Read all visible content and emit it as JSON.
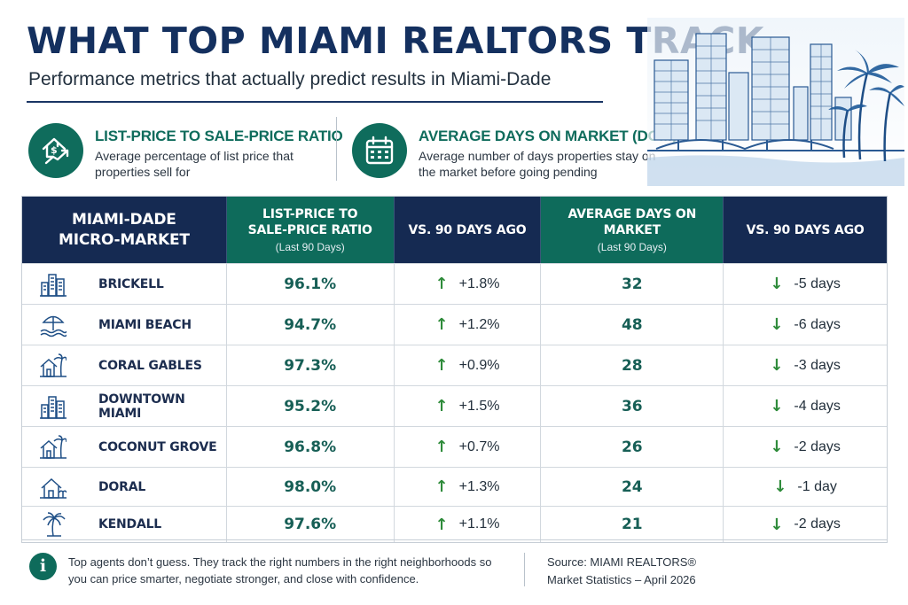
{
  "header": {
    "title": "WHAT TOP MIAMI REALTORS TRACK",
    "subtitle": "Performance metrics that actually predict results in Miami-Dade"
  },
  "metrics": [
    {
      "title": "LIST-PRICE TO SALE-PRICE RATIO",
      "description": "Average percentage of list price that properties sell for",
      "icon": "house-dollar-trend-icon"
    },
    {
      "title": "AVERAGE DAYS ON MARKET (DOM)",
      "description": "Average number of days properties stay on the market before going pending",
      "icon": "calendar-icon"
    }
  ],
  "table": {
    "headers": [
      {
        "title": "MIAMI-DADE MICRO-MARKET",
        "sub": ""
      },
      {
        "title": "LIST-PRICE TO SALE-PRICE RATIO",
        "sub": "(Last 90 Days)"
      },
      {
        "title": "VS. 90 DAYS AGO",
        "sub": ""
      },
      {
        "title": "AVERAGE DAYS ON MARKET",
        "sub": "(Last 90 Days)"
      },
      {
        "title": "VS. 90 DAYS AGO",
        "sub": ""
      }
    ],
    "rows": [
      {
        "name": "BRICKELL",
        "icon": "buildings-icon",
        "ratio": "96.1%",
        "ratio_change": "+1.8%",
        "dom": "32",
        "dom_change": "-5 days"
      },
      {
        "name": "MIAMI BEACH",
        "icon": "beach-umbrella-icon",
        "ratio": "94.7%",
        "ratio_change": "+1.2%",
        "dom": "48",
        "dom_change": "-6 days"
      },
      {
        "name": "CORAL GABLES",
        "icon": "house-palm-icon",
        "ratio": "97.3%",
        "ratio_change": "+0.9%",
        "dom": "28",
        "dom_change": "-3 days"
      },
      {
        "name": "DOWNTOWN MIAMI",
        "icon": "buildings-icon",
        "ratio": "95.2%",
        "ratio_change": "+1.5%",
        "dom": "36",
        "dom_change": "-4 days"
      },
      {
        "name": "COCONUT GROVE",
        "icon": "house-palm-icon",
        "ratio": "96.8%",
        "ratio_change": "+0.7%",
        "dom": "26",
        "dom_change": "-2 days"
      },
      {
        "name": "DORAL",
        "icon": "house-icon",
        "ratio": "98.0%",
        "ratio_change": "+1.3%",
        "dom": "24",
        "dom_change": "-1 day"
      },
      {
        "name": "KENDALL",
        "icon": "palm-tree-icon",
        "ratio": "97.6%",
        "ratio_change": "+1.1%",
        "dom": "21",
        "dom_change": "-2 days"
      }
    ]
  },
  "footer": {
    "note": "Top agents don’t guess. They track the right numbers in the right neighborhoods so you can price smarter, negotiate stronger, and close with confidence.",
    "source_line1": "Source: MIAMI REALTORS®",
    "source_line2": "Market Statistics – April 2026"
  },
  "colors": {
    "navy": "#152a52",
    "teal": "#0e6b5b",
    "up_arrow": "#2e8b3a",
    "down_arrow": "#2e8b3a"
  }
}
